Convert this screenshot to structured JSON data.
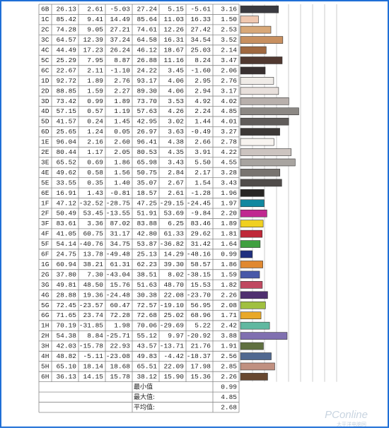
{
  "table": {
    "rows": [
      {
        "id": "6B",
        "values": [
          "26.13",
          "2.61",
          "-5.03",
          "27.24",
          "5.15",
          "-5.61"
        ],
        "de": 3.16,
        "de_label": "3.16",
        "color": "#3a3a40"
      },
      {
        "id": "1C",
        "values": [
          "85.42",
          "9.41",
          "14.49",
          "85.64",
          "11.03",
          "16.33"
        ],
        "de": 1.5,
        "de_label": "1.50",
        "color": "#f0c8b0"
      },
      {
        "id": "2C",
        "values": [
          "74.28",
          "9.05",
          "27.21",
          "74.61",
          "12.26",
          "27.42"
        ],
        "de": 2.53,
        "de_label": "2.53",
        "color": "#d8a878"
      },
      {
        "id": "3C",
        "values": [
          "64.57",
          "12.39",
          "37.24",
          "64.58",
          "16.31",
          "34.54"
        ],
        "de": 3.52,
        "de_label": "3.52",
        "color": "#c89060"
      },
      {
        "id": "4C",
        "values": [
          "44.49",
          "17.23",
          "26.24",
          "46.12",
          "18.67",
          "25.03"
        ],
        "de": 2.14,
        "de_label": "2.14",
        "color": "#a06840"
      },
      {
        "id": "5C",
        "values": [
          "25.29",
          "7.95",
          "8.87",
          "26.88",
          "11.16",
          "8.24"
        ],
        "de": 3.47,
        "de_label": "3.47",
        "color": "#503830"
      },
      {
        "id": "6C",
        "values": [
          "22.67",
          "2.11",
          "-1.10",
          "24.22",
          "3.45",
          "-1.60"
        ],
        "de": 2.06,
        "de_label": "2.06",
        "color": "#383030"
      },
      {
        "id": "1D",
        "values": [
          "92.72",
          "1.89",
          "2.76",
          "93.17",
          "4.06",
          "2.95"
        ],
        "de": 2.76,
        "de_label": "2.76",
        "color": "#f0ece8"
      },
      {
        "id": "2D",
        "values": [
          "88.85",
          "1.59",
          "2.27",
          "89.30",
          "4.06",
          "2.94"
        ],
        "de": 3.17,
        "de_label": "3.17",
        "color": "#e8e0dc"
      },
      {
        "id": "3D",
        "values": [
          "73.42",
          "0.99",
          "1.89",
          "73.70",
          "3.53",
          "4.92"
        ],
        "de": 4.02,
        "de_label": "4.02",
        "color": "#b8b0ac"
      },
      {
        "id": "4D",
        "values": [
          "57.15",
          "0.57",
          "1.19",
          "57.63",
          "4.26",
          "2.24"
        ],
        "de": 4.85,
        "de_label": "4.85",
        "color": "#8c8884"
      },
      {
        "id": "5D",
        "values": [
          "41.57",
          "0.24",
          "1.45",
          "42.95",
          "3.02",
          "1.44"
        ],
        "de": 4.01,
        "de_label": "4.01",
        "color": "#605c5a"
      },
      {
        "id": "6D",
        "values": [
          "25.65",
          "1.24",
          "0.05",
          "26.97",
          "3.63",
          "-0.49"
        ],
        "de": 3.27,
        "de_label": "3.27",
        "color": "#3c3836"
      },
      {
        "id": "1E",
        "values": [
          "96.04",
          "2.16",
          "2.60",
          "96.41",
          "4.38",
          "2.66"
        ],
        "de": 2.78,
        "de_label": "2.78",
        "color": "#f8f4f0"
      },
      {
        "id": "2E",
        "values": [
          "80.44",
          "1.17",
          "2.05",
          "80.53",
          "4.35",
          "3.91"
        ],
        "de": 4.22,
        "de_label": "4.22",
        "color": "#ccc4c0"
      },
      {
        "id": "3E",
        "values": [
          "65.52",
          "0.69",
          "1.86",
          "65.98",
          "3.43",
          "5.50"
        ],
        "de": 4.55,
        "de_label": "4.55",
        "color": "#a8a4a0"
      },
      {
        "id": "4E",
        "values": [
          "49.62",
          "0.58",
          "1.56",
          "50.75",
          "2.84",
          "2.17"
        ],
        "de": 3.28,
        "de_label": "3.28",
        "color": "#787470"
      },
      {
        "id": "5E",
        "values": [
          "33.55",
          "0.35",
          "1.40",
          "35.07",
          "2.67",
          "1.54"
        ],
        "de": 3.43,
        "de_label": "3.43",
        "color": "#504c4a"
      },
      {
        "id": "6E",
        "values": [
          "16.91",
          "1.43",
          "-0.81",
          "18.57",
          "2.61",
          "-1.28"
        ],
        "de": 1.96,
        "de_label": "1.96",
        "color": "#282624"
      },
      {
        "id": "1F",
        "values": [
          "47.12",
          "-32.52",
          "-28.75",
          "47.25",
          "-29.15",
          "-24.45"
        ],
        "de": 1.97,
        "de_label": "1.97",
        "color": "#1088a0"
      },
      {
        "id": "2F",
        "values": [
          "50.49",
          "53.45",
          "-13.55",
          "51.91",
          "53.69",
          "-9.84"
        ],
        "de": 2.2,
        "de_label": "2.20",
        "color": "#c02890"
      },
      {
        "id": "3F",
        "values": [
          "83.61",
          "3.36",
          "87.02",
          "83.88",
          "6.25",
          "83.46"
        ],
        "de": 1.89,
        "de_label": "1.89",
        "color": "#f0d020"
      },
      {
        "id": "4F",
        "values": [
          "41.05",
          "60.75",
          "31.17",
          "42.80",
          "61.33",
          "29.62"
        ],
        "de": 1.81,
        "de_label": "1.81",
        "color": "#c02838"
      },
      {
        "id": "5F",
        "values": [
          "54.14",
          "-40.76",
          "34.75",
          "53.87",
          "-36.82",
          "31.42"
        ],
        "de": 1.64,
        "de_label": "1.64",
        "color": "#40a040"
      },
      {
        "id": "6F",
        "values": [
          "24.75",
          "13.78",
          "-49.48",
          "25.13",
          "14.29",
          "-48.16"
        ],
        "de": 0.99,
        "de_label": "0.99",
        "color": "#203080"
      },
      {
        "id": "1G",
        "values": [
          "60.94",
          "38.21",
          "61.31",
          "62.23",
          "39.30",
          "58.57"
        ],
        "de": 1.86,
        "de_label": "1.86",
        "color": "#e08830"
      },
      {
        "id": "2G",
        "values": [
          "37.80",
          "7.30",
          "-43.04",
          "38.51",
          "8.02",
          "-38.15"
        ],
        "de": 1.59,
        "de_label": "1.59",
        "color": "#4858a8"
      },
      {
        "id": "3G",
        "values": [
          "49.81",
          "48.50",
          "15.76",
          "51.63",
          "48.70",
          "15.53"
        ],
        "de": 1.82,
        "de_label": "1.82",
        "color": "#c04860"
      },
      {
        "id": "4G",
        "values": [
          "28.88",
          "19.36",
          "-24.48",
          "30.38",
          "22.08",
          "-23.70"
        ],
        "de": 2.26,
        "de_label": "2.26",
        "color": "#503070"
      },
      {
        "id": "5G",
        "values": [
          "72.45",
          "-23.57",
          "60.47",
          "72.57",
          "-19.10",
          "56.95"
        ],
        "de": 2.08,
        "de_label": "2.08",
        "color": "#a0c040"
      },
      {
        "id": "6G",
        "values": [
          "71.65",
          "23.74",
          "72.28",
          "72.68",
          "25.02",
          "68.96"
        ],
        "de": 1.71,
        "de_label": "1.71",
        "color": "#e8a828"
      },
      {
        "id": "1H",
        "values": [
          "70.19",
          "-31.85",
          "1.98",
          "70.06",
          "-29.69",
          "5.22"
        ],
        "de": 2.42,
        "de_label": "2.42",
        "color": "#60b8a0"
      },
      {
        "id": "2H",
        "values": [
          "54.38",
          "8.84",
          "-25.71",
          "55.12",
          "9.97",
          "-20.92"
        ],
        "de": 3.88,
        "de_label": "3.88",
        "color": "#8070b0"
      },
      {
        "id": "3H",
        "values": [
          "42.03",
          "-15.78",
          "22.93",
          "43.57",
          "-13.71",
          "21.76"
        ],
        "de": 1.91,
        "de_label": "1.91",
        "color": "#607040"
      },
      {
        "id": "4H",
        "values": [
          "48.82",
          "-5.11",
          "-23.08",
          "49.83",
          "-4.42",
          "-18.37"
        ],
        "de": 2.56,
        "de_label": "2.56",
        "color": "#506890"
      },
      {
        "id": "5H",
        "values": [
          "65.10",
          "18.14",
          "18.68",
          "65.51",
          "22.09",
          "17.98"
        ],
        "de": 2.85,
        "de_label": "2.85",
        "color": "#c09080"
      },
      {
        "id": "6H",
        "values": [
          "36.13",
          "14.15",
          "15.78",
          "38.12",
          "15.90",
          "15.36"
        ],
        "de": 2.26,
        "de_label": "2.26",
        "color": "#684830"
      }
    ],
    "summary": [
      {
        "label": "最小值",
        "value": "0.99"
      },
      {
        "label": "最大值:",
        "value": "4.85"
      },
      {
        "label": "平均值:",
        "value": "2.68"
      }
    ],
    "bar_xlim": [
      0,
      8
    ],
    "bar_grid": [
      0,
      1,
      2,
      3,
      4,
      5,
      6,
      7,
      8
    ]
  },
  "watermark": {
    "brand": "PConline",
    "sub": "太平洋电脑网"
  }
}
